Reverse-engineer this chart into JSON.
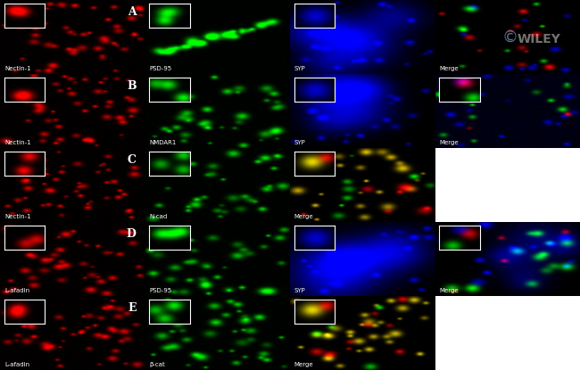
{
  "panels": [
    {
      "row": 0,
      "col": 0,
      "color": "red",
      "label": "Nectin-1",
      "letter": "A",
      "has_inset": true,
      "inset_color": "red"
    },
    {
      "row": 0,
      "col": 1,
      "color": "green",
      "label": "PSD-95",
      "letter": null,
      "has_inset": true,
      "inset_color": "green_bright"
    },
    {
      "row": 0,
      "col": 2,
      "color": "blue",
      "label": "SYP",
      "letter": null,
      "has_inset": true,
      "inset_color": "blue"
    },
    {
      "row": 0,
      "col": 3,
      "color": "merge_A",
      "label": "Merge",
      "letter": null,
      "has_inset": false,
      "inset_color": null,
      "wiley": true
    },
    {
      "row": 1,
      "col": 0,
      "color": "red",
      "label": "Nectin-1",
      "letter": "B",
      "has_inset": true,
      "inset_color": "red"
    },
    {
      "row": 1,
      "col": 1,
      "color": "green",
      "label": "NMDAR1",
      "letter": null,
      "has_inset": true,
      "inset_color": "green"
    },
    {
      "row": 1,
      "col": 2,
      "color": "blue",
      "label": "SYP",
      "letter": null,
      "has_inset": true,
      "inset_color": "blue"
    },
    {
      "row": 1,
      "col": 3,
      "color": "merge_B",
      "label": "Merge",
      "letter": null,
      "has_inset": true,
      "inset_color": "multi"
    },
    {
      "row": 2,
      "col": 0,
      "color": "red",
      "label": "Nectin-1",
      "letter": "C",
      "has_inset": true,
      "inset_color": "red"
    },
    {
      "row": 2,
      "col": 1,
      "color": "green",
      "label": "N-cad",
      "letter": null,
      "has_inset": true,
      "inset_color": "green"
    },
    {
      "row": 2,
      "col": 2,
      "color": "yellow",
      "label": "Merge",
      "letter": null,
      "has_inset": true,
      "inset_color": "yellow"
    },
    {
      "row": 2,
      "col": 3,
      "color": "none",
      "label": "",
      "letter": null,
      "has_inset": false,
      "inset_color": null
    },
    {
      "row": 3,
      "col": 0,
      "color": "red",
      "label": "L-afadin",
      "letter": "D",
      "has_inset": true,
      "inset_color": "red"
    },
    {
      "row": 3,
      "col": 1,
      "color": "green",
      "label": "PSD-95",
      "letter": null,
      "has_inset": true,
      "inset_color": "green"
    },
    {
      "row": 3,
      "col": 2,
      "color": "blue",
      "label": "SYP",
      "letter": null,
      "has_inset": true,
      "inset_color": "blue"
    },
    {
      "row": 3,
      "col": 3,
      "color": "merge_D",
      "label": "Merge",
      "letter": null,
      "has_inset": true,
      "inset_color": "multi"
    },
    {
      "row": 4,
      "col": 0,
      "color": "red",
      "label": "L-afadin",
      "letter": "E",
      "has_inset": true,
      "inset_color": "red"
    },
    {
      "row": 4,
      "col": 1,
      "color": "green",
      "label": "β-cat",
      "letter": null,
      "has_inset": true,
      "inset_color": "green"
    },
    {
      "row": 4,
      "col": 2,
      "color": "yellow2",
      "label": "Merge",
      "letter": null,
      "has_inset": true,
      "inset_color": "yellow"
    },
    {
      "row": 4,
      "col": 3,
      "color": "none",
      "label": "",
      "letter": null,
      "has_inset": false,
      "inset_color": null
    }
  ]
}
